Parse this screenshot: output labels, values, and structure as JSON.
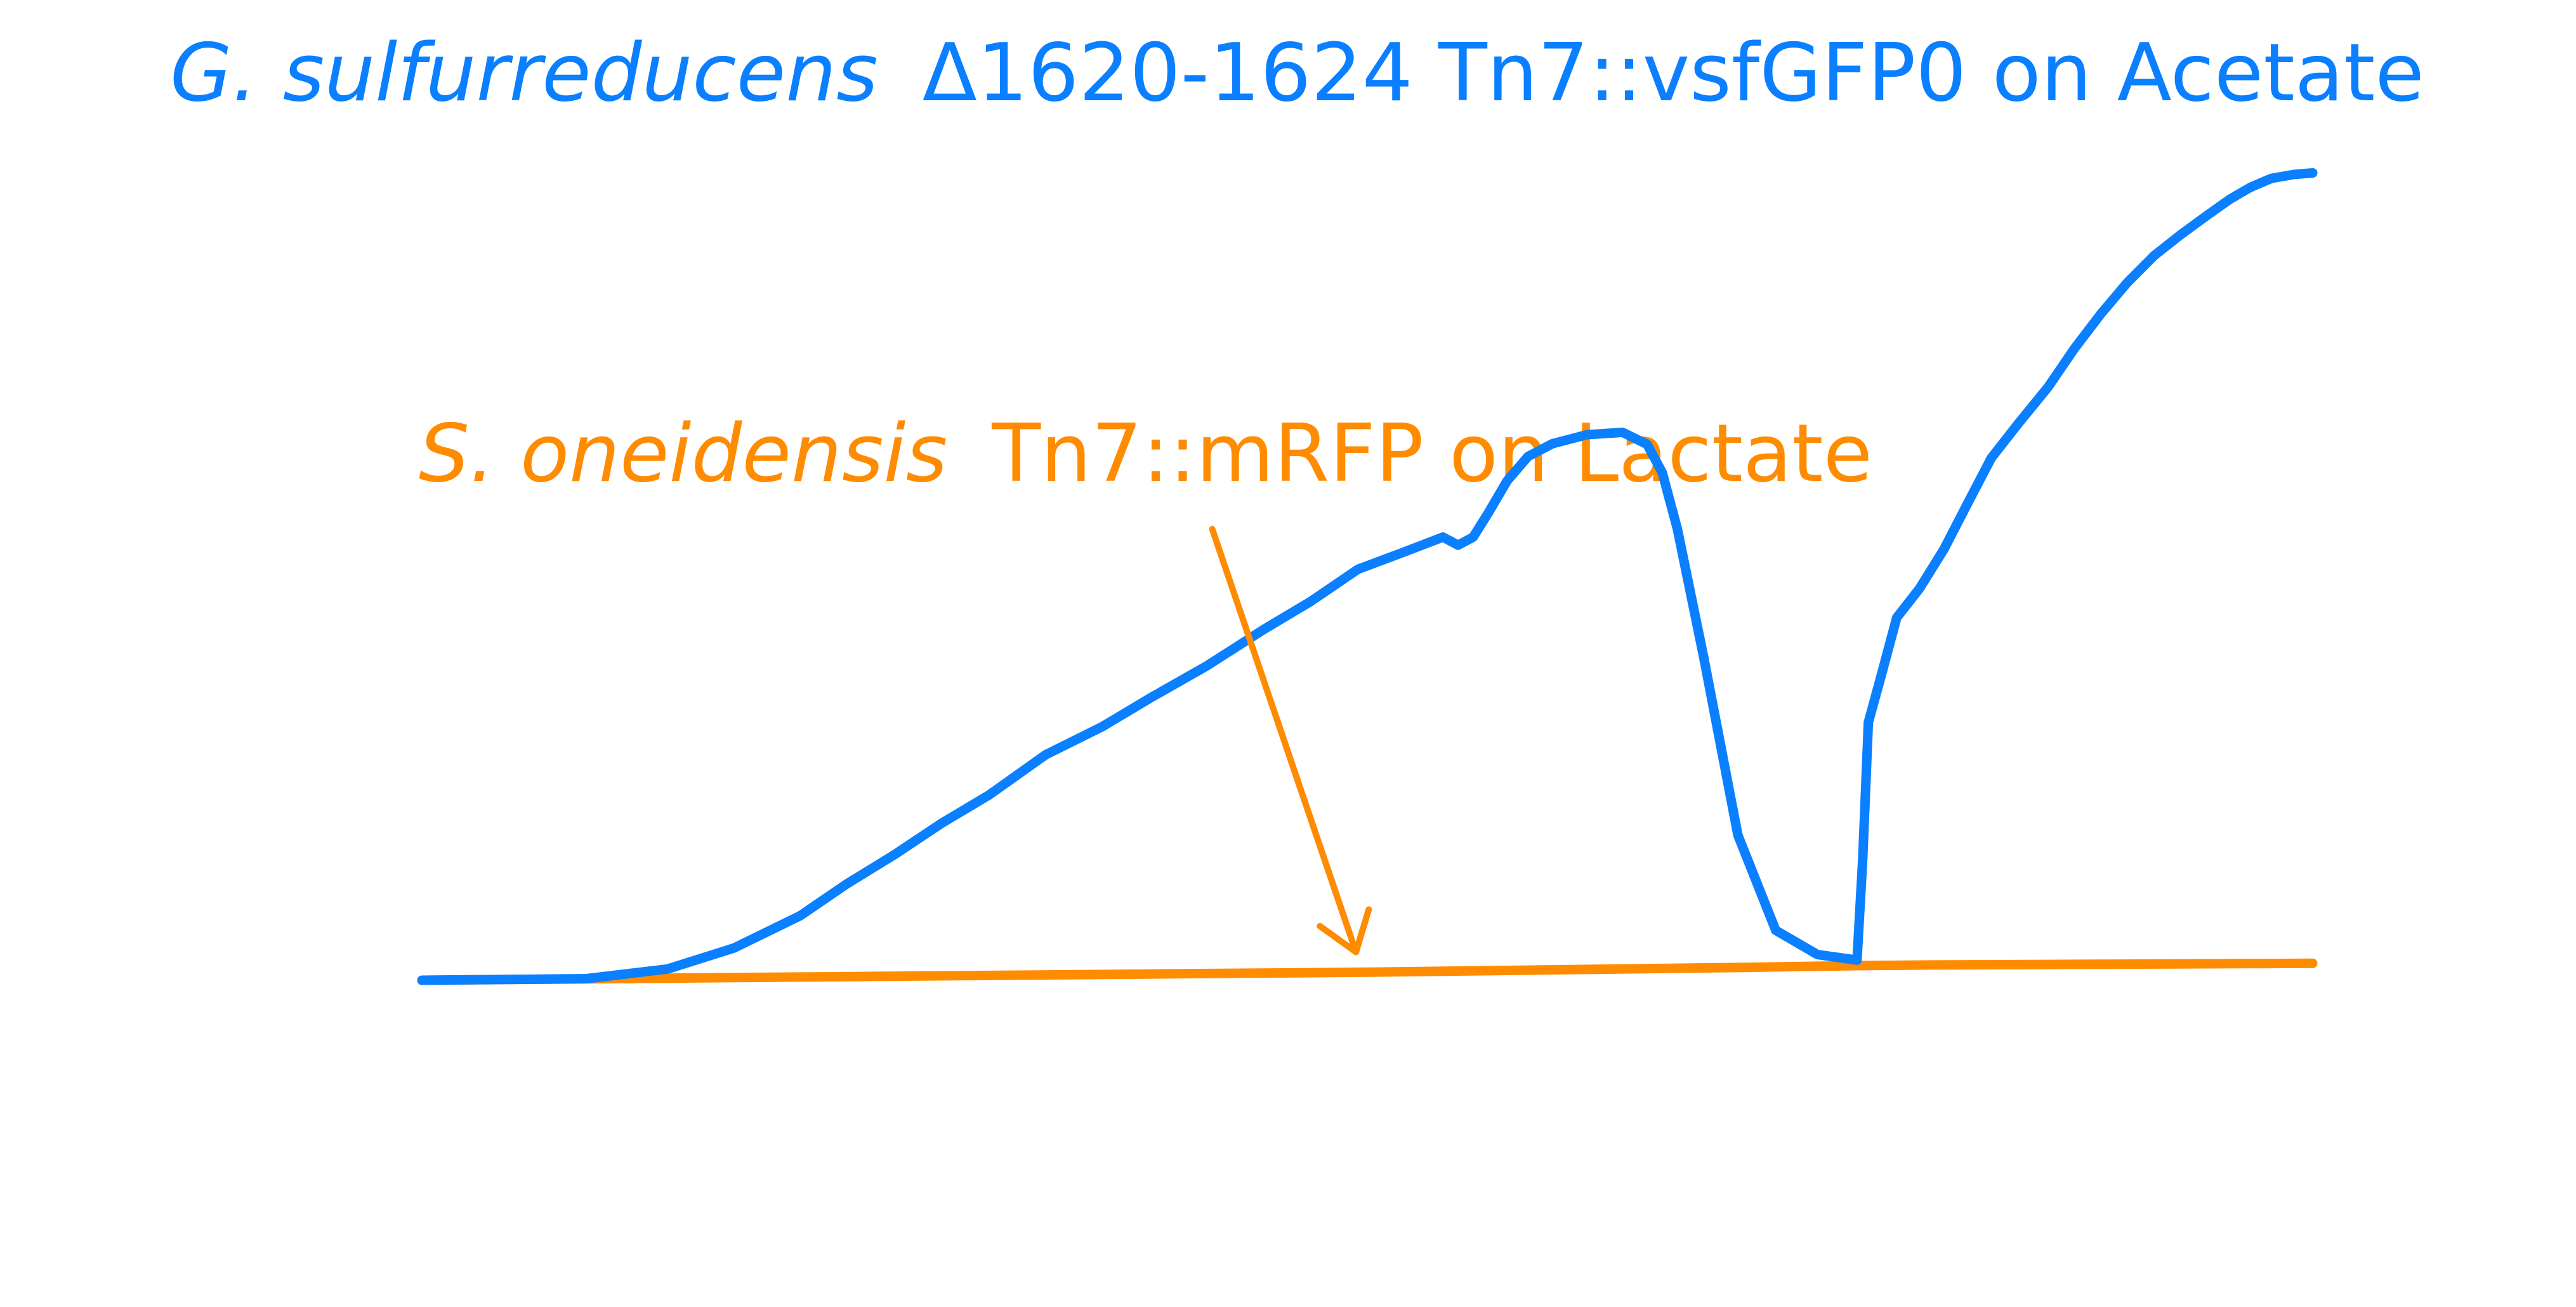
{
  "colors": {
    "series_blue": "#0A7FFF",
    "series_orange": "#FF8C00",
    "background": "#FFFFFF"
  },
  "chart_data": {
    "type": "line",
    "title": "",
    "xlabel": "",
    "ylabel": "",
    "axes_visible": false,
    "grid": false,
    "legend": "none",
    "xlim": [
      0,
      100
    ],
    "ylim": [
      0,
      100
    ],
    "series": [
      {
        "name": "G. sulfurreducens Δ1620-1624 Tn7::vsfGFP0 on Acetate",
        "label_italic": "G. sulfurreducens",
        "label_rest": "Δ1620-1624 Tn7::vsfGFP0 on Acetate",
        "color": "#0A7FFF",
        "x": [
          0,
          8.7,
          13,
          16.5,
          20,
          22.5,
          25,
          27.5,
          30,
          33,
          36,
          38.5,
          41.5,
          44.5,
          47,
          49.5,
          52,
          54,
          54.8,
          55.6,
          56.4,
          57.4,
          58.5,
          59.8,
          61.6,
          63.5,
          64.8,
          65.6,
          66.4,
          67.8,
          69.6,
          71.6,
          73.8,
          75.9,
          76.2,
          76.5,
          77.2,
          78,
          79.2,
          80.5,
          81.8,
          83,
          84.4,
          86,
          87.4,
          88.8,
          90.2,
          91.6,
          93,
          94.4,
          95.6,
          96.7,
          97.8,
          99,
          100
        ],
        "y": [
          0,
          0.2,
          1.4,
          4,
          8,
          12,
          15.6,
          19.5,
          23,
          28,
          31.5,
          35,
          39,
          43.5,
          47,
          51,
          53.2,
          55,
          54,
          55,
          58,
          62,
          65,
          66.6,
          67.7,
          68,
          66.5,
          63,
          56,
          40,
          18,
          6.2,
          3.2,
          2.5,
          15,
          32,
          38,
          45,
          48.6,
          53.5,
          59.4,
          64.8,
          69,
          73.6,
          78.4,
          82.7,
          86.6,
          89.9,
          92.5,
          94.9,
          96.9,
          98.4,
          99.5,
          100,
          100.2
        ]
      },
      {
        "name": "S. oneidensis Tn7::mRFP on Lactate",
        "label_italic": "S. oneidensis",
        "label_rest": "Tn7::mRFP on Lactate",
        "color": "#FF8C00",
        "x": [
          0,
          10,
          20,
          30,
          40,
          50,
          60,
          70,
          75.5,
          80,
          90,
          100
        ],
        "y": [
          0,
          0.2,
          0.4,
          0.6,
          0.8,
          1.0,
          1.3,
          1.6,
          1.8,
          1.9,
          2.0,
          2.1
        ]
      }
    ],
    "annotations": [
      {
        "text": "S. oneidensis Tn7::mRFP on Lactate",
        "color": "#FF8C00",
        "arrow_from": [
          41.8,
          56
        ],
        "arrow_to": [
          49.4,
          3.5
        ]
      }
    ]
  }
}
